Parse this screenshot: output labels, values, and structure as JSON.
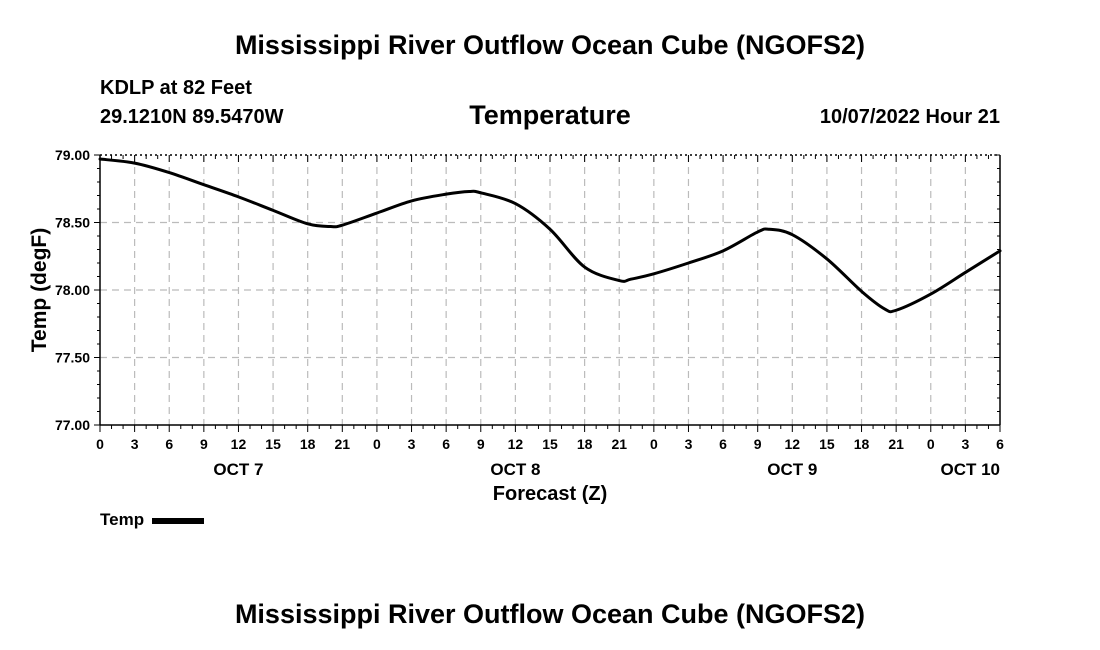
{
  "header": {
    "title": "Mississippi River Outflow Ocean Cube (NGOFS2)",
    "station": "KDLP at 82 Feet",
    "coords": "29.1210N  89.5470W",
    "variable": "Temperature",
    "datetime": "10/07/2022 Hour 21"
  },
  "footer": {
    "title": "Mississippi River Outflow Ocean Cube (NGOFS2)"
  },
  "legend": {
    "label": "Temp"
  },
  "colors": {
    "line": "#000000",
    "grid": "#bbbbbb",
    "background": "#ffffff"
  },
  "chart_data": {
    "type": "line",
    "title": "Temperature",
    "xlabel": "Forecast (Z)",
    "ylabel": "Temp (degF)",
    "xlim": [
      0,
      78
    ],
    "ylim": [
      77.0,
      79.0
    ],
    "ytick_labels": [
      "77.00",
      "77.50",
      "78.00",
      "78.50",
      "79.00"
    ],
    "ytick_values": [
      77.0,
      77.5,
      78.0,
      78.5,
      79.0
    ],
    "xtick_labels": [
      "0",
      "3",
      "6",
      "9",
      "12",
      "15",
      "18",
      "21",
      "0",
      "3",
      "6",
      "9",
      "12",
      "15",
      "18",
      "21",
      "0",
      "3",
      "6",
      "9",
      "12",
      "15",
      "18",
      "21",
      "0",
      "3",
      "6"
    ],
    "day_labels": [
      {
        "label": "OCT 7",
        "hour": 12
      },
      {
        "label": "OCT 8",
        "hour": 36
      },
      {
        "label": "OCT 9",
        "hour": 60
      },
      {
        "label": "OCT 10",
        "hour": 75
      }
    ],
    "grid": true,
    "series": [
      {
        "name": "Temp",
        "x": [
          0,
          3,
          6,
          9,
          12,
          15,
          18,
          20,
          21,
          24,
          27,
          30,
          32,
          33,
          36,
          39,
          42,
          45,
          46,
          48,
          51,
          54,
          57,
          58,
          60,
          63,
          66,
          68,
          69,
          72,
          75,
          78
        ],
        "y": [
          78.97,
          78.94,
          78.87,
          78.78,
          78.69,
          78.59,
          78.49,
          78.47,
          78.48,
          78.57,
          78.66,
          78.71,
          78.73,
          78.72,
          78.64,
          78.45,
          78.17,
          78.07,
          78.08,
          78.12,
          78.2,
          78.29,
          78.43,
          78.45,
          78.41,
          78.23,
          77.99,
          77.86,
          77.85,
          77.97,
          78.13,
          78.29
        ]
      }
    ]
  }
}
